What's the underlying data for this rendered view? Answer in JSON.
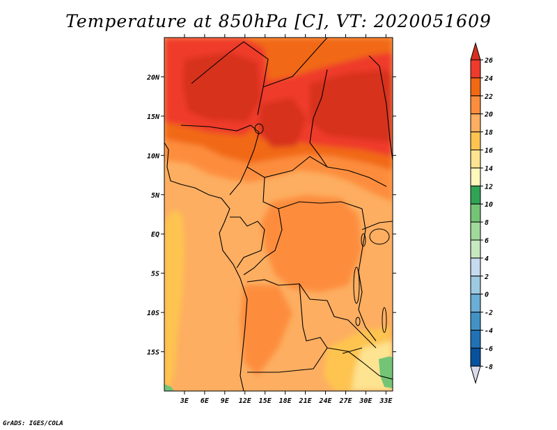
{
  "title": "Temperature at 850hPa [C], VT: 2020051609",
  "credit": "GrADS: IGES/COLA",
  "map": {
    "lon_range": [
      0,
      34
    ],
    "lat_range": [
      -20,
      25
    ],
    "x_ticks": [
      "3E",
      "6E",
      "9E",
      "12E",
      "15E",
      "18E",
      "21E",
      "24E",
      "27E",
      "30E",
      "33E"
    ],
    "x_tick_values": [
      3,
      6,
      9,
      12,
      15,
      18,
      21,
      24,
      27,
      30,
      33
    ],
    "y_ticks": [
      "20N",
      "15N",
      "10N",
      "5N",
      "EQ",
      "5S",
      "10S",
      "15S"
    ],
    "y_tick_values": [
      20,
      15,
      10,
      5,
      0,
      -5,
      -10,
      -15
    ]
  },
  "colorbar": {
    "levels": [
      "26",
      "24",
      "22",
      "20",
      "18",
      "16",
      "14",
      "12",
      "10",
      "8",
      "6",
      "4",
      "2",
      "0",
      "-2",
      "-4",
      "-6",
      "-8"
    ],
    "colors": [
      "#d7301f",
      "#ef3b2c",
      "#f16913",
      "#fd8d3c",
      "#fdae61",
      "#fec44f",
      "#fee391",
      "#fff7bc",
      "#31a354",
      "#74c476",
      "#a1d99b",
      "#c7e9c0",
      "#c6dbef",
      "#9ecae1",
      "#6baed6",
      "#4292c6",
      "#2171b5",
      "#08519c",
      "#08306b"
    ],
    "top_color": "#d7301f",
    "bottom_color": "#dadaeb"
  }
}
